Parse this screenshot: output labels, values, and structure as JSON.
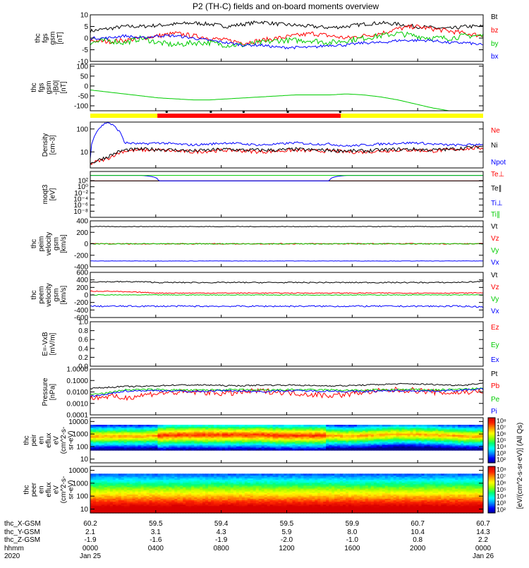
{
  "title": "P2 (TH-C) fields and on-board moments overview",
  "colors": {
    "black": "#000000",
    "red": "#ff0000",
    "green": "#00cc00",
    "blue": "#0000ff"
  },
  "status_bar": {
    "yellow": "#ffff00",
    "red": "#ff0000",
    "segments": [
      {
        "from": 0.0,
        "to": 4.1,
        "color": "yellow"
      },
      {
        "from": 4.1,
        "to": 15.3,
        "color": "red"
      },
      {
        "from": 15.3,
        "to": 24.0,
        "color": "yellow"
      }
    ]
  },
  "chart_data": [
    {
      "type": "line",
      "id": "fgs-gsm",
      "ylabel_lines": [
        "thc",
        "fgs",
        "gsm",
        "[nT]"
      ],
      "ylim": [
        -10,
        10
      ],
      "yticks": [
        -10,
        -5,
        0,
        5,
        10
      ],
      "series": [
        {
          "name": "Bt",
          "color": "black",
          "base": [
            3,
            4,
            5,
            5,
            5.5,
            6,
            6.5,
            6,
            5,
            6,
            7,
            6,
            5.5,
            5,
            4.5,
            5,
            6,
            6.5,
            6,
            5,
            4.5,
            4,
            5,
            5
          ],
          "noise": 0.8
        },
        {
          "name": "bz",
          "color": "red",
          "base": [
            -1,
            -1.5,
            -1,
            0,
            1,
            2,
            1,
            0,
            -1,
            -2,
            -1,
            0,
            1,
            2,
            1,
            0,
            1,
            2,
            4,
            5,
            4,
            3,
            2,
            1
          ],
          "noise": 1.0
        },
        {
          "name": "by",
          "color": "green",
          "base": [
            -2,
            -1,
            -2,
            0,
            -2,
            -3,
            -2,
            -2,
            -3,
            -3,
            -2,
            -1,
            -1,
            -1,
            -2,
            -1,
            0,
            1,
            2,
            1,
            0,
            0,
            1,
            1
          ],
          "noise": 1.2
        },
        {
          "name": "bx",
          "color": "blue",
          "base": [
            0,
            0,
            1,
            0,
            1,
            1,
            0,
            -1,
            -2,
            -3,
            -3,
            -4,
            -4,
            -4,
            -3,
            -3,
            -2,
            -2,
            -1,
            -1,
            -1,
            -2,
            -2,
            -3
          ],
          "noise": 0.6
        }
      ]
    },
    {
      "type": "line",
      "id": "fgs-gsm-b0",
      "ylabel_lines": [
        "thc",
        "fgs",
        "gsm",
        "-|B0|",
        "[nT]"
      ],
      "ylim": [
        -125,
        110
      ],
      "yticks": [
        -100,
        -50,
        0,
        50,
        100
      ],
      "series": [
        {
          "name": "",
          "color": "green",
          "base": [
            -20,
            -30,
            -40,
            -50,
            -60,
            -65,
            -70,
            -70,
            -65,
            -60,
            -55,
            -50,
            -45,
            -45,
            -45,
            -40,
            -45,
            -55,
            -70,
            -90,
            -110,
            -125,
            -125,
            -125
          ],
          "noise": 0
        }
      ]
    },
    {
      "type": "line",
      "id": "density",
      "scale": "log",
      "ylabel_lines": [
        "Density",
        "[cm-3]"
      ],
      "ylim": [
        2,
        200
      ],
      "yticks": [
        10,
        100
      ],
      "ytick_labels": [
        "10",
        "100"
      ],
      "series": [
        {
          "name": "Ne",
          "color": "red",
          "base": [
            3,
            5,
            11,
            12,
            12,
            11,
            10,
            11,
            12,
            11,
            10,
            11,
            12,
            11,
            11,
            10,
            10,
            11,
            12,
            12,
            11,
            12,
            14,
            15
          ],
          "noise": 0.08
        },
        {
          "name": "Ni",
          "color": "black",
          "base": [
            3,
            6,
            12,
            13,
            13,
            12,
            11,
            12,
            13,
            12,
            12,
            12,
            13,
            12,
            12,
            11,
            11,
            12,
            13,
            13,
            12,
            13,
            15,
            18
          ],
          "noise": 0.08
        },
        {
          "name": "Npot",
          "color": "blue",
          "base": [
            5,
            200,
            25,
            22,
            25,
            22,
            20,
            22,
            25,
            22,
            20,
            22,
            25,
            22,
            22,
            18,
            20,
            22,
            24,
            25,
            22,
            20,
            20,
            22
          ],
          "noise": 0.05
        }
      ]
    },
    {
      "type": "line",
      "id": "moms-temp",
      "scale": "log",
      "ylabel_lines": [
        "moqt3",
        "[eV]"
      ],
      "ylim": [
        1e-10,
        100000
      ],
      "yticks": [
        1e-08,
        1e-06,
        0.0001,
        0.01,
        1,
        100
      ],
      "ytick_labels": [
        "10⁻⁸",
        "10⁻⁶",
        "10⁻⁴",
        "10⁻²",
        "10⁰",
        "10²"
      ],
      "series": [
        {
          "name": "Te⊥",
          "color": "red",
          "base": [
            80,
            80,
            80,
            80,
            80,
            80,
            80,
            80,
            80,
            80,
            80,
            80,
            80,
            80,
            80,
            80,
            80,
            80,
            80,
            80,
            80,
            80,
            80,
            80
          ],
          "noise": 0
        },
        {
          "name": "Te∥",
          "color": "black",
          "base": [
            80,
            80,
            80,
            80,
            80,
            80,
            80,
            80,
            80,
            80,
            80,
            80,
            80,
            80,
            80,
            80,
            80,
            80,
            80,
            80,
            80,
            80,
            80,
            80
          ],
          "noise": 0
        },
        {
          "name": "Ti⊥",
          "color": "blue",
          "base": [
            5000,
            5000,
            5000,
            5000,
            80,
            80,
            80,
            80,
            80,
            80,
            80,
            80,
            80,
            80,
            80,
            5000,
            5000,
            5000,
            5000,
            5000,
            5000,
            5000,
            5000,
            5000
          ],
          "noise": 0
        },
        {
          "name": "Ti∥",
          "color": "green",
          "base": [
            5000,
            5000,
            5000,
            5000,
            5000,
            5000,
            5000,
            5000,
            5000,
            5000,
            5000,
            5000,
            5000,
            5000,
            5000,
            5000,
            5000,
            5000,
            5000,
            5000,
            5000,
            5000,
            5000,
            5000
          ],
          "noise": 0
        }
      ]
    },
    {
      "type": "line",
      "id": "peim-velocity",
      "ylabel_lines": [
        "thc",
        "peim",
        "velocity",
        "gsm",
        "[km/s]"
      ],
      "ylim": [
        -400,
        400
      ],
      "yticks": [
        -400,
        -200,
        0,
        200,
        400
      ],
      "series": [
        {
          "name": "Vt",
          "color": "black",
          "base": [
            300,
            300,
            300,
            300,
            300,
            300,
            300,
            300,
            300,
            300,
            300,
            300,
            300,
            300,
            300,
            300,
            300,
            300,
            300,
            300,
            300,
            300,
            300,
            300
          ],
          "noise": 5
        },
        {
          "name": "Vz",
          "color": "red",
          "base": [
            0,
            0,
            0,
            0,
            0,
            0,
            0,
            0,
            0,
            0,
            0,
            0,
            0,
            0,
            0,
            0,
            0,
            0,
            0,
            0,
            0,
            0,
            0,
            0
          ],
          "noise": 8
        },
        {
          "name": "Vy",
          "color": "green",
          "base": [
            0,
            0,
            0,
            0,
            0,
            0,
            0,
            0,
            0,
            0,
            0,
            0,
            0,
            0,
            0,
            0,
            0,
            0,
            0,
            0,
            0,
            0,
            0,
            0
          ],
          "noise": 8
        },
        {
          "name": "Vx",
          "color": "blue",
          "base": [
            -300,
            -300,
            -300,
            -300,
            -300,
            -300,
            -300,
            -300,
            -300,
            -300,
            -300,
            -300,
            -300,
            -300,
            -300,
            -300,
            -300,
            -300,
            -300,
            -300,
            -300,
            -300,
            -300,
            -300
          ],
          "noise": 3
        }
      ]
    },
    {
      "type": "line",
      "id": "peem-velocity",
      "ylabel_lines": [
        "thc",
        "peem",
        "velocity",
        "gsm",
        "[km/s]"
      ],
      "ylim": [
        -600,
        600
      ],
      "yticks": [
        -600,
        -400,
        -200,
        0,
        200,
        400,
        600
      ],
      "series": [
        {
          "name": "Vt",
          "color": "black",
          "base": [
            350,
            350,
            350,
            350,
            330,
            330,
            330,
            330,
            330,
            330,
            330,
            330,
            330,
            330,
            330,
            330,
            330,
            330,
            330,
            330,
            330,
            330,
            340,
            360
          ],
          "noise": 15
        },
        {
          "name": "Vz",
          "color": "red",
          "base": [
            100,
            100,
            80,
            70,
            50,
            50,
            50,
            50,
            50,
            50,
            50,
            50,
            50,
            50,
            50,
            50,
            50,
            50,
            50,
            50,
            50,
            50,
            50,
            60
          ],
          "noise": 12
        },
        {
          "name": "Vy",
          "color": "green",
          "base": [
            0,
            0,
            0,
            0,
            0,
            0,
            0,
            0,
            0,
            0,
            0,
            0,
            0,
            0,
            0,
            0,
            0,
            0,
            0,
            0,
            0,
            0,
            0,
            0
          ],
          "noise": 10
        },
        {
          "name": "Vx",
          "color": "blue",
          "base": [
            -300,
            -300,
            -300,
            -300,
            -300,
            -300,
            -300,
            -300,
            -300,
            -300,
            -300,
            -300,
            -300,
            -300,
            -300,
            -300,
            -300,
            -300,
            -300,
            -300,
            -300,
            -300,
            -300,
            -320
          ],
          "noise": 20
        }
      ]
    },
    {
      "type": "line",
      "id": "efield",
      "ylabel_lines": [
        "E=-VxB",
        "[mV/m]"
      ],
      "ylim": [
        0,
        1
      ],
      "yticks": [
        0,
        0.2,
        0.4,
        0.6,
        0.8,
        1.0
      ],
      "ytick_labels": [
        "0.0",
        "0.2",
        "0.4",
        "0.6",
        "0.8",
        "1.0"
      ],
      "series": [
        {
          "name": "Ez",
          "color": "red",
          "base": [],
          "noise": 0
        },
        {
          "name": "Ey",
          "color": "green",
          "base": [],
          "noise": 0
        },
        {
          "name": "Ex",
          "color": "blue",
          "base": [],
          "noise": 0
        }
      ]
    },
    {
      "type": "line",
      "id": "pressure",
      "scale": "log",
      "ylabel_lines": [
        "Pressure",
        "[nPa]"
      ],
      "ylim": [
        0.0001,
        1
      ],
      "yticks": [
        0.0001,
        0.001,
        0.01,
        0.1,
        1
      ],
      "ytick_labels": [
        "0.0001",
        "0.0010",
        "0.0100",
        "0.1000",
        "1.0000"
      ],
      "series": [
        {
          "name": "Pt",
          "color": "black",
          "base": [
            0.02,
            0.025,
            0.03,
            0.03,
            0.035,
            0.04,
            0.04,
            0.04,
            0.035,
            0.035,
            0.04,
            0.04,
            0.04,
            0.035,
            0.035,
            0.035,
            0.04,
            0.045,
            0.05,
            0.05,
            0.045,
            0.04,
            0.04,
            0.06
          ],
          "noise": 0.06
        },
        {
          "name": "Pb",
          "color": "red",
          "base": [
            0.003,
            0.004,
            0.003,
            0.005,
            0.008,
            0.009,
            0.01,
            0.009,
            0.007,
            0.01,
            0.012,
            0.01,
            0.008,
            0.006,
            0.005,
            0.006,
            0.01,
            0.012,
            0.015,
            0.014,
            0.01,
            0.008,
            0.01,
            0.012
          ],
          "noise": 0.25
        },
        {
          "name": "Pe",
          "color": "green",
          "base": [
            0.006,
            0.008,
            0.015,
            0.016,
            0.016,
            0.015,
            0.014,
            0.015,
            0.016,
            0.015,
            0.014,
            0.015,
            0.016,
            0.015,
            0.015,
            0.014,
            0.014,
            0.015,
            0.016,
            0.016,
            0.015,
            0.016,
            0.018,
            0.02
          ],
          "noise": 0.08
        },
        {
          "name": "Pi",
          "color": "blue",
          "base": [
            0.004,
            0.006,
            0.012,
            0.013,
            0.013,
            0.012,
            0.011,
            0.012,
            0.013,
            0.012,
            0.011,
            0.012,
            0.013,
            0.012,
            0.012,
            0.011,
            0.011,
            0.012,
            0.013,
            0.013,
            0.012,
            0.013,
            0.015,
            0.018
          ],
          "noise": 0.08
        }
      ]
    },
    {
      "type": "heatmap",
      "id": "peir-energy",
      "scale": "log",
      "ylabel_lines": [
        "thc",
        "peir",
        "en",
        "eflux",
        "eV",
        "(cm^2-s-",
        "sr-eV)"
      ],
      "ylim": [
        5,
        20000
      ],
      "yticks": [
        10,
        100,
        1000,
        10000
      ],
      "ytick_labels": [
        "10",
        "100",
        "1000",
        "10000"
      ],
      "band_center": [
        700,
        700,
        700,
        700,
        800,
        900,
        900,
        900,
        900,
        900,
        900,
        800,
        800,
        800,
        800,
        700,
        800,
        900,
        1000,
        1000,
        900,
        800,
        700,
        700
      ],
      "band_extent": [
        1,
        1,
        1,
        1,
        1,
        1,
        1,
        1,
        1,
        1,
        1,
        1,
        1,
        1,
        1,
        1,
        1,
        1,
        1,
        1,
        1,
        1,
        1,
        1
      ],
      "top_data_energy": 5000,
      "bottom_data_energy": 50
    },
    {
      "type": "heatmap",
      "id": "peer-energy",
      "scale": "log",
      "ylabel_lines": [
        "thc",
        "peer",
        "en",
        "eflux",
        "eV",
        "(cm^2-s-",
        "sr-eV)"
      ],
      "ylim": [
        5,
        20000
      ],
      "yticks": [
        10,
        100,
        1000,
        10000
      ],
      "ytick_labels": [
        "10",
        "100",
        "1000",
        "10000"
      ],
      "band_center": [
        30,
        30,
        30,
        30,
        30,
        30,
        30,
        30,
        30,
        30,
        30,
        30,
        30,
        30,
        30,
        30,
        30,
        30,
        30,
        30,
        30,
        30,
        30,
        30
      ],
      "top_data_energy": 5000,
      "bottom_data_energy": 5
    }
  ],
  "colorbar": {
    "label": "[eV/(cm^2-s-sr-eV)] (All Qs)",
    "upper_ticks": [
      "10²",
      "10³",
      "10⁴",
      "10⁵",
      "10⁶",
      "10⁷",
      "10⁸"
    ],
    "lower_ticks": [
      "10²",
      "10³",
      "10⁴",
      "10⁵",
      "10⁶",
      "10⁷",
      "10⁸"
    ]
  },
  "x_axis": {
    "hours": [
      0,
      4,
      8,
      12,
      16,
      20,
      24
    ],
    "rows": [
      {
        "label": "thc_X-GSM",
        "values": [
          "60.2",
          "59.5",
          "59.4",
          "59.5",
          "59.9",
          "60.7",
          "60.7"
        ]
      },
      {
        "label": "thc_Y-GSM",
        "values": [
          "2.1",
          "3.1",
          "4.3",
          "5.9",
          "8.0",
          "10.4",
          "14.3"
        ]
      },
      {
        "label": "thc_Z-GSM",
        "values": [
          "-1.9",
          "-1.6",
          "-1.9",
          "-2.0",
          "-1.0",
          "0.8",
          "2.2"
        ]
      },
      {
        "label": "hhmm",
        "values": [
          "0000",
          "0400",
          "0800",
          "1200",
          "1600",
          "2000",
          "0000"
        ]
      },
      {
        "label": "2020",
        "values": [
          "Jan 25",
          "",
          "",
          "",
          "",
          "",
          "Jan 26"
        ]
      }
    ]
  }
}
